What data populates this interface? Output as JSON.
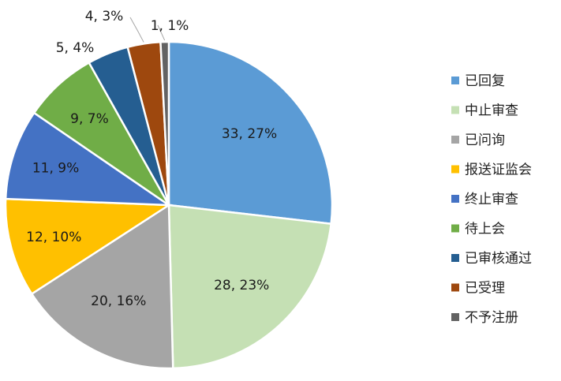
{
  "chart_data": {
    "type": "pie",
    "title": "",
    "legend_position": "right",
    "slices": [
      {
        "name": "已回复",
        "value": 33,
        "percent": 27,
        "label": "33, 27%",
        "color": "#5b9bd5"
      },
      {
        "name": "中止审查",
        "value": 28,
        "percent": 23,
        "label": "28, 23%",
        "color": "#c5e0b4"
      },
      {
        "name": "已问询",
        "value": 20,
        "percent": 16,
        "label": "20, 16%",
        "color": "#a5a5a5"
      },
      {
        "name": "报送证监会",
        "value": 12,
        "percent": 10,
        "label": "12, 10%",
        "color": "#ffc000"
      },
      {
        "name": "终止审查",
        "value": 11,
        "percent": 9,
        "label": "11, 9%",
        "color": "#4472c4"
      },
      {
        "name": "待上会",
        "value": 9,
        "percent": 7,
        "label": "9, 7%",
        "color": "#70ad47"
      },
      {
        "name": "已审核通过",
        "value": 5,
        "percent": 4,
        "label": "5, 4%",
        "color": "#255e91"
      },
      {
        "name": "已受理",
        "value": 4,
        "percent": 3,
        "label": "4, 3%",
        "color": "#9e480e"
      },
      {
        "name": "不予注册",
        "value": 1,
        "percent": 1,
        "label": "1, 1%",
        "color": "#636363"
      }
    ]
  }
}
